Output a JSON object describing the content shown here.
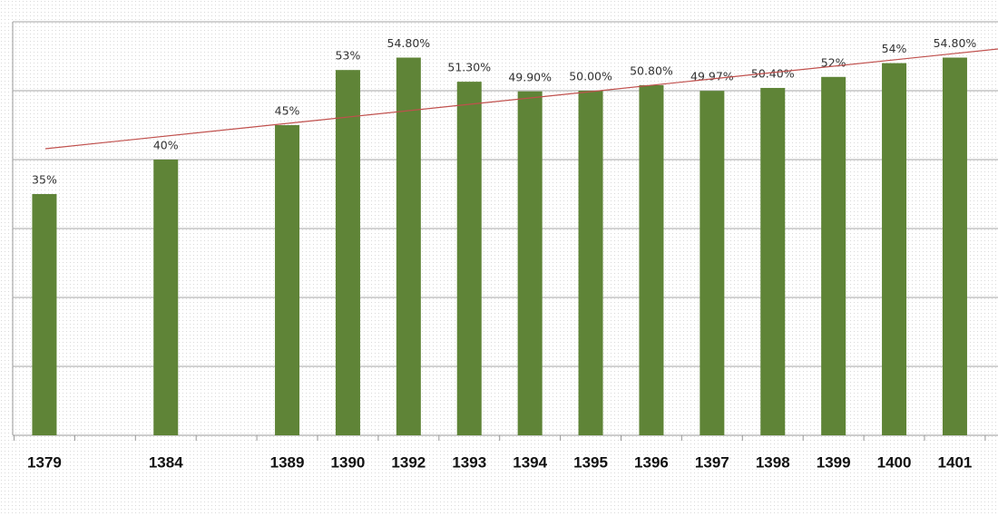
{
  "chart_data": {
    "type": "bar",
    "categories": [
      "1379",
      null,
      "1384",
      null,
      "1389",
      "1390",
      "1392",
      "1393",
      "1394",
      "1395",
      "1396",
      "1397",
      "1398",
      "1399",
      "1400",
      "1401"
    ],
    "values": [
      35,
      null,
      40,
      null,
      45,
      53,
      54.8,
      51.3,
      49.9,
      50,
      50.8,
      49.97,
      50.4,
      52,
      54,
      54.8
    ],
    "value_labels": [
      "35%",
      null,
      "40%",
      null,
      "45%",
      "53%",
      "54.80%",
      "51.30%",
      "49.90%",
      "50.00%",
      "50.80%",
      "49.97%",
      "50.40%",
      "52%",
      "54%",
      "54.80%"
    ],
    "color": "#5f8437",
    "ylim": [
      0,
      60
    ],
    "yticks": [
      0,
      10,
      20,
      30,
      40,
      50,
      60
    ],
    "grid": true
  }
}
